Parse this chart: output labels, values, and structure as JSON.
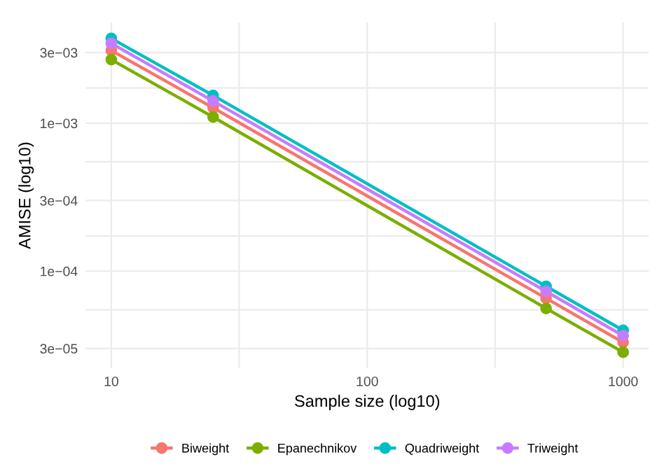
{
  "chart_data": {
    "type": "line",
    "xlabel": "Sample size (log10)",
    "ylabel": "AMISE (log10)",
    "x": [
      10,
      25,
      500,
      1000
    ],
    "series": [
      {
        "name": "Biweight",
        "color": "#f8766d",
        "values": [
          0.0031,
          0.00127,
          6.55e-05,
          3.3e-05
        ]
      },
      {
        "name": "Epanechnikov",
        "color": "#7cae00",
        "values": [
          0.00269,
          0.0011,
          5.6e-05,
          2.83e-05
        ]
      },
      {
        "name": "Quadriweight",
        "color": "#00bfc4",
        "values": [
          0.00374,
          0.00154,
          7.9e-05,
          3.98e-05
        ]
      },
      {
        "name": "Triweight",
        "color": "#c77cff",
        "values": [
          0.00346,
          0.00141,
          7.3e-05,
          3.66e-05
        ]
      }
    ],
    "log": "xy",
    "xlim": [
      7.94,
      1259
    ],
    "ylim": [
      2.2e-05,
      0.0048
    ],
    "xticks": [
      10,
      {
        "value": 31.6,
        "label": null
      },
      100,
      {
        "value": 316,
        "label": null
      },
      1000
    ],
    "yticks": [
      {
        "value": 3e-05,
        "label": "3e−05"
      },
      {
        "value": 5.48e-05,
        "label": null
      },
      {
        "value": 0.0001,
        "label": "1e−04"
      },
      {
        "value": 0.000173,
        "label": null
      },
      {
        "value": 0.0003,
        "label": "3e−04"
      },
      {
        "value": 0.000548,
        "label": null
      },
      {
        "value": 0.001,
        "label": "1e−03"
      },
      {
        "value": 0.00173,
        "label": null
      },
      {
        "value": 0.003,
        "label": "3e−03"
      }
    ],
    "grid": true,
    "legend": "bottom",
    "marker": "circle",
    "line_style": "solid"
  }
}
